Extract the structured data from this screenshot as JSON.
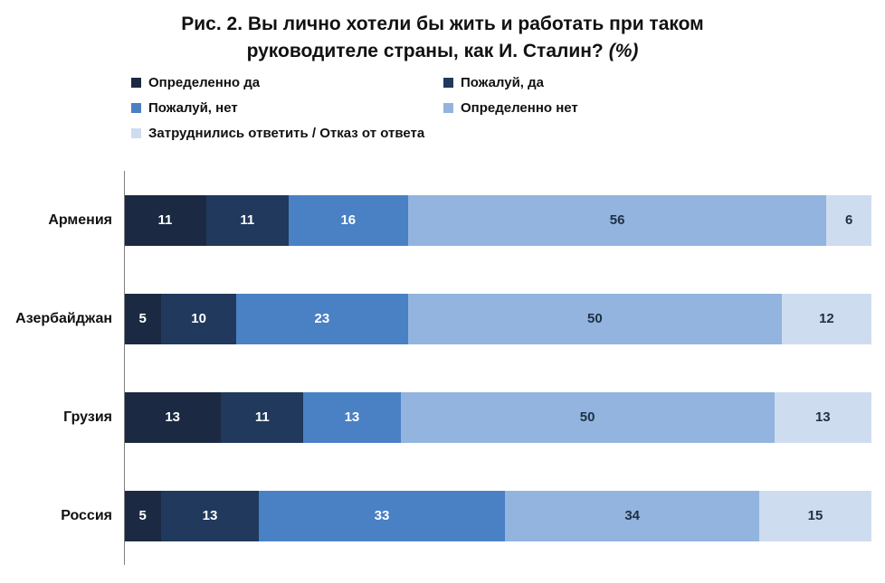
{
  "title": {
    "line1": "Рис. 2. Вы лично хотели бы жить и работать при таком",
    "line2": "руководителе страны, как И. Сталин?",
    "unit": "(%)"
  },
  "colors": {
    "axis": "#808080",
    "dark_value_label": "#1F3045",
    "light_value_label": "#FFFFFF",
    "title_text": "#111111"
  },
  "chart_data": {
    "type": "bar",
    "orientation": "horizontal",
    "stacked": true,
    "grid": false,
    "legend_position": "top-left",
    "xlim": [
      0,
      100
    ],
    "xlabel": "",
    "ylabel": "",
    "title": "Рис. 2. Вы лично хотели бы жить и работать при таком руководителе страны, как И. Сталин? (%)",
    "categories": [
      "Армения",
      "Азербайджан",
      "Грузия",
      "Россия"
    ],
    "series": [
      {
        "name": "Определенно да",
        "color": "#1B2A42",
        "label_color": "#FFFFFF",
        "values": [
          11,
          5,
          13,
          5
        ]
      },
      {
        "name": "Пожалуй, да",
        "color": "#20395C",
        "label_color": "#FFFFFF",
        "values": [
          11,
          10,
          11,
          13
        ]
      },
      {
        "name": "Пожалуй, нет",
        "color": "#4A80C4",
        "label_color": "#FFFFFF",
        "values": [
          16,
          23,
          13,
          33
        ]
      },
      {
        "name": "Определенно нет",
        "color": "#92B4DE",
        "label_color": "#1F3045",
        "values": [
          56,
          50,
          50,
          34
        ]
      },
      {
        "name": "Затруднились ответить / Отказ от ответа",
        "color": "#CEDCF0",
        "label_color": "#1F3045",
        "values": [
          6,
          12,
          13,
          15
        ]
      }
    ],
    "value_labels": true
  }
}
